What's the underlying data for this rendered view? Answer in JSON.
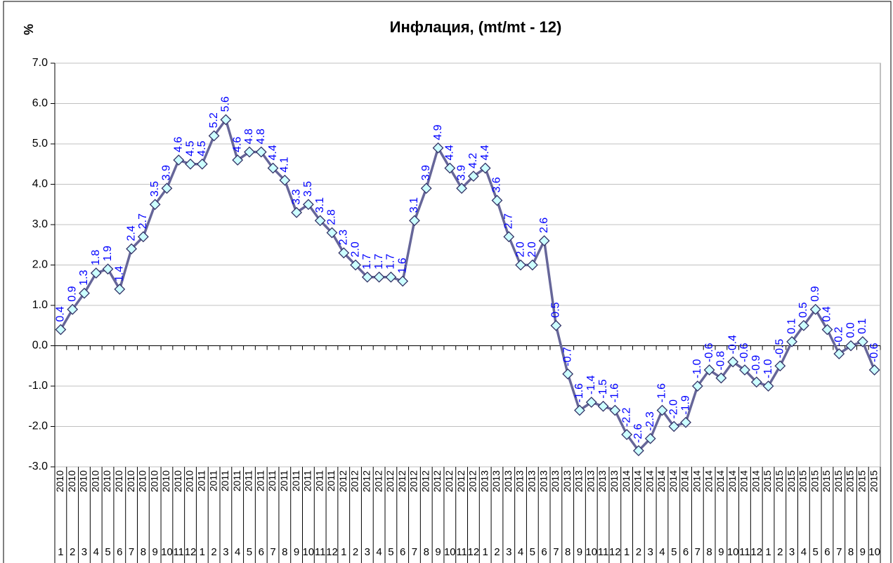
{
  "chart_data": {
    "type": "line",
    "title": "Инфлация, (mt/mt - 12)",
    "y_label": "%",
    "categories": [
      {
        "year": "2010",
        "month": "1"
      },
      {
        "year": "2010",
        "month": "2"
      },
      {
        "year": "2010",
        "month": "3"
      },
      {
        "year": "2010",
        "month": "4"
      },
      {
        "year": "2010",
        "month": "5"
      },
      {
        "year": "2010",
        "month": "6"
      },
      {
        "year": "2010",
        "month": "7"
      },
      {
        "year": "2010",
        "month": "8"
      },
      {
        "year": "2010",
        "month": "9"
      },
      {
        "year": "2010",
        "month": "10"
      },
      {
        "year": "2010",
        "month": "11"
      },
      {
        "year": "2010",
        "month": "12"
      },
      {
        "year": "2011",
        "month": "1"
      },
      {
        "year": "2011",
        "month": "2"
      },
      {
        "year": "2011",
        "month": "3"
      },
      {
        "year": "2011",
        "month": "4"
      },
      {
        "year": "2011",
        "month": "5"
      },
      {
        "year": "2011",
        "month": "6"
      },
      {
        "year": "2011",
        "month": "7"
      },
      {
        "year": "2011",
        "month": "8"
      },
      {
        "year": "2011",
        "month": "9"
      },
      {
        "year": "2011",
        "month": "10"
      },
      {
        "year": "2011",
        "month": "11"
      },
      {
        "year": "2011",
        "month": "12"
      },
      {
        "year": "2012",
        "month": "1"
      },
      {
        "year": "2012",
        "month": "2"
      },
      {
        "year": "2012",
        "month": "3"
      },
      {
        "year": "2012",
        "month": "4"
      },
      {
        "year": "2012",
        "month": "5"
      },
      {
        "year": "2012",
        "month": "6"
      },
      {
        "year": "2012",
        "month": "7"
      },
      {
        "year": "2012",
        "month": "8"
      },
      {
        "year": "2012",
        "month": "9"
      },
      {
        "year": "2012",
        "month": "10"
      },
      {
        "year": "2012",
        "month": "11"
      },
      {
        "year": "2012",
        "month": "12"
      },
      {
        "year": "2013",
        "month": "1"
      },
      {
        "year": "2013",
        "month": "2"
      },
      {
        "year": "2013",
        "month": "3"
      },
      {
        "year": "2013",
        "month": "4"
      },
      {
        "year": "2013",
        "month": "5"
      },
      {
        "year": "2013",
        "month": "6"
      },
      {
        "year": "2013",
        "month": "7"
      },
      {
        "year": "2013",
        "month": "8"
      },
      {
        "year": "2013",
        "month": "9"
      },
      {
        "year": "2013",
        "month": "10"
      },
      {
        "year": "2013",
        "month": "11"
      },
      {
        "year": "2013",
        "month": "12"
      },
      {
        "year": "2014",
        "month": "1"
      },
      {
        "year": "2014",
        "month": "2"
      },
      {
        "year": "2014",
        "month": "3"
      },
      {
        "year": "2014",
        "month": "4"
      },
      {
        "year": "2014",
        "month": "5"
      },
      {
        "year": "2014",
        "month": "6"
      },
      {
        "year": "2014",
        "month": "7"
      },
      {
        "year": "2014",
        "month": "8"
      },
      {
        "year": "2014",
        "month": "9"
      },
      {
        "year": "2014",
        "month": "10"
      },
      {
        "year": "2014",
        "month": "11"
      },
      {
        "year": "2014",
        "month": "12"
      },
      {
        "year": "2015",
        "month": "1"
      },
      {
        "year": "2015",
        "month": "2"
      },
      {
        "year": "2015",
        "month": "3"
      },
      {
        "year": "2015",
        "month": "4"
      },
      {
        "year": "2015",
        "month": "5"
      },
      {
        "year": "2015",
        "month": "6"
      },
      {
        "year": "2015",
        "month": "7"
      },
      {
        "year": "2015",
        "month": "8"
      },
      {
        "year": "2015",
        "month": "9"
      },
      {
        "year": "2015",
        "month": "10"
      }
    ],
    "values": [
      0.4,
      0.9,
      1.3,
      1.8,
      1.9,
      1.4,
      2.4,
      2.7,
      3.5,
      3.9,
      4.6,
      4.5,
      4.5,
      5.2,
      5.6,
      4.6,
      4.8,
      4.8,
      4.4,
      4.1,
      3.3,
      3.5,
      3.1,
      2.8,
      2.3,
      2.0,
      1.7,
      1.7,
      1.7,
      1.6,
      3.1,
      3.9,
      4.9,
      4.4,
      3.9,
      4.2,
      4.4,
      3.6,
      2.7,
      2.0,
      2.0,
      2.6,
      0.5,
      -0.7,
      -1.6,
      -1.4,
      -1.5,
      -1.6,
      -2.2,
      -2.6,
      -2.3,
      -1.6,
      -2.0,
      -1.9,
      -1.0,
      -0.6,
      -0.8,
      -0.4,
      -0.6,
      -0.9,
      -1.0,
      -0.5,
      0.1,
      0.5,
      0.9,
      0.4,
      -0.2,
      0.0,
      0.1,
      -0.6
    ],
    "value_labels": [
      "0.4",
      "0.9",
      "1.3",
      "1.8",
      "1.9",
      "1.4",
      "2.4",
      "2.7",
      "3.5",
      "3.9",
      "4.6",
      "4.5",
      "4.5",
      "5.2",
      "5.6",
      "4.6",
      "4.8",
      "4.8",
      "4.4",
      "4.1",
      "3.3",
      "3.5",
      "3.1",
      "2.8",
      "2.3",
      "2.0",
      "1.7",
      "1.7",
      "1.7",
      "1.6",
      "3.1",
      "3.9",
      "4.9",
      "4.4",
      "3.9",
      "4.2",
      "4.4",
      "3.6",
      "2.7",
      "2.0",
      "2.0",
      "2.6",
      "0.5",
      "-0.7",
      "-1.6",
      "-1.4",
      "-1.5",
      "-1.6",
      "-2.2",
      "-2.6",
      "-2.3",
      "-1.6",
      "-2.0",
      "-1.9",
      "-1.0",
      "-0.6",
      "-0.8",
      "-0.4",
      "-0.6",
      "-0.9",
      "-1.0",
      "-0.5",
      "0.1",
      "0.5",
      "0.9",
      "0.4",
      "-0.2",
      "0.0",
      "0.1",
      "-0.6"
    ],
    "color": "#666699",
    "marker_color": "#ccffff",
    "label_color": "#0000ff",
    "ylim": [
      -3,
      7
    ],
    "yticks": [
      {
        "value": -3,
        "label": "-3.0"
      },
      {
        "value": -2,
        "label": "-2.0"
      },
      {
        "value": -1,
        "label": "-1.0"
      },
      {
        "value": 0,
        "label": "0.0"
      },
      {
        "value": 1,
        "label": "1.0"
      },
      {
        "value": 2,
        "label": "2.0"
      },
      {
        "value": 3,
        "label": "3.0"
      },
      {
        "value": 4,
        "label": "4.0"
      },
      {
        "value": 5,
        "label": "5.0"
      },
      {
        "value": 6,
        "label": "6.0"
      },
      {
        "value": 7,
        "label": "7.0"
      }
    ],
    "grid": true
  }
}
